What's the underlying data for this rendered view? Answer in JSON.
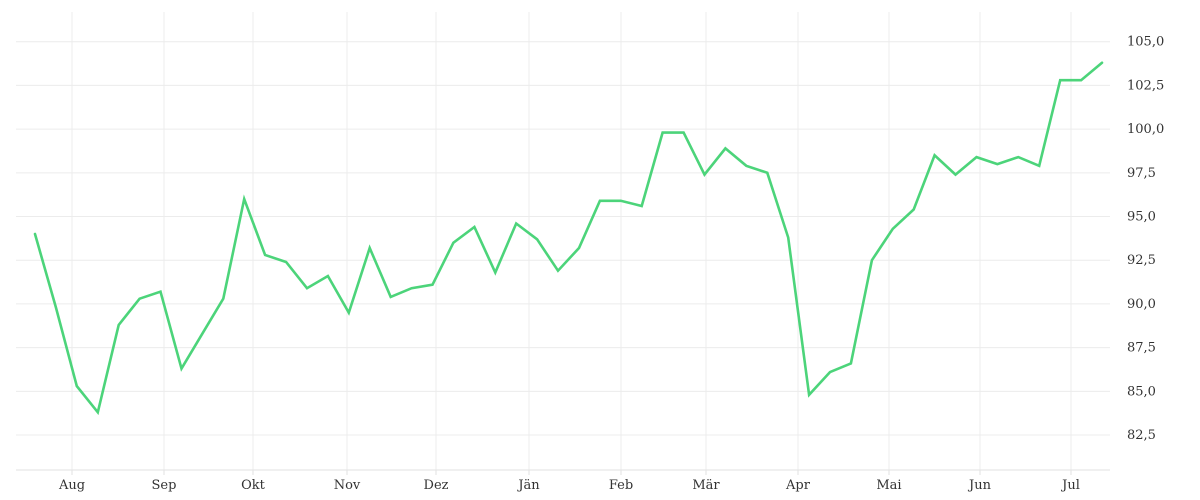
{
  "chart_data": {
    "type": "line",
    "title": "",
    "xlabel": "",
    "ylabel": "",
    "grid": true,
    "legend": "none",
    "x_tick_labels": [
      "Aug",
      "Sep",
      "Okt",
      "Nov",
      "Dez",
      "Jän",
      "Feb",
      "Mär",
      "Apr",
      "Mai",
      "Jun",
      "Jul"
    ],
    "y_tick_labels": [
      "82,5",
      "85,0",
      "87,5",
      "90,0",
      "92,5",
      "95,0",
      "97,5",
      "100,0",
      "102,5",
      "105,0"
    ],
    "y_ticks": [
      82.5,
      85.0,
      87.5,
      90.0,
      92.5,
      95.0,
      97.5,
      100.0,
      102.5,
      105.0
    ],
    "ylim": [
      80.5,
      106.7
    ],
    "line_color": "#4cd47a",
    "series": [
      {
        "values": [
          94.0,
          89.8,
          85.3,
          83.8,
          88.8,
          90.3,
          90.7,
          86.3,
          88.3,
          90.3,
          96.0,
          92.8,
          92.4,
          90.9,
          91.6,
          89.5,
          93.2,
          90.4,
          90.9,
          91.1,
          93.5,
          94.4,
          91.8,
          94.6,
          93.7,
          91.9,
          93.2,
          95.9,
          95.9,
          95.6,
          99.8,
          99.8,
          97.4,
          98.9,
          97.9,
          97.5,
          93.8,
          84.8,
          86.1,
          86.6,
          92.5,
          94.3,
          95.4,
          98.5,
          97.4,
          98.4,
          98.0,
          98.4,
          97.9,
          102.8,
          102.8,
          103.8
        ]
      }
    ]
  }
}
